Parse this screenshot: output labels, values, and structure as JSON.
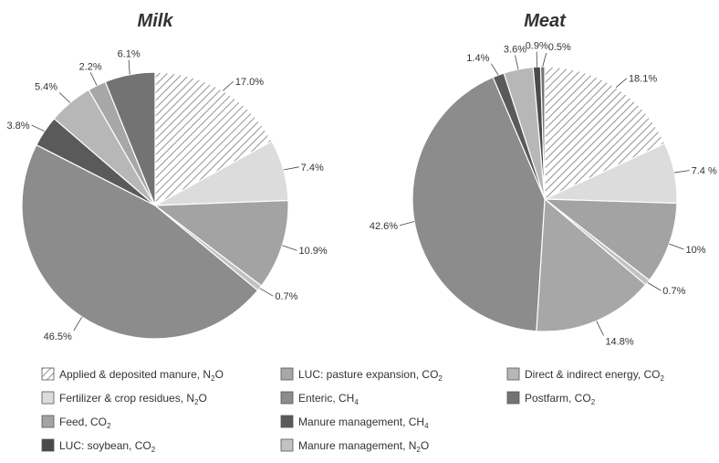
{
  "chart_data": [
    {
      "type": "pie",
      "title": "Milk",
      "slices": [
        {
          "key": "manure_n2o",
          "value": 17.0,
          "label": "17.0%"
        },
        {
          "key": "fert_n2o",
          "value": 7.4,
          "label": "7.4%"
        },
        {
          "key": "feed_co2",
          "value": 10.9,
          "label": "10.9%"
        },
        {
          "key": "mm_n2o",
          "value": 0.7,
          "label": "0.7%"
        },
        {
          "key": "enteric_ch4",
          "value": 46.5,
          "label": "46.5%"
        },
        {
          "key": "mm_ch4",
          "value": 3.8,
          "label": "3.8%"
        },
        {
          "key": "energy_co2",
          "value": 5.4,
          "label": "5.4%"
        },
        {
          "key": "luc_pasture_co2",
          "value": 2.2,
          "label": "2.2%"
        },
        {
          "key": "postfarm_co2",
          "value": 6.1,
          "label": "6.1%"
        }
      ]
    },
    {
      "type": "pie",
      "title": "Meat",
      "slices": [
        {
          "key": "manure_n2o",
          "value": 18.1,
          "label": "18.1%"
        },
        {
          "key": "fert_n2o",
          "value": 7.4,
          "label": "7.4 %"
        },
        {
          "key": "feed_co2",
          "value": 10,
          "label": "10%"
        },
        {
          "key": "mm_n2o",
          "value": 0.7,
          "label": "0.7%"
        },
        {
          "key": "luc_pasture_co2",
          "value": 14.8,
          "label": "14.8%"
        },
        {
          "key": "enteric_ch4",
          "value": 42.6,
          "label": "42.6%"
        },
        {
          "key": "mm_ch4",
          "value": 1.4,
          "label": "1.4%"
        },
        {
          "key": "energy_co2",
          "value": 3.6,
          "label": "3.6%"
        },
        {
          "key": "luc_soy_co2",
          "value": 0.9,
          "label": "0.9%"
        },
        {
          "key": "postfarm_co2",
          "value": 0.5,
          "label": "0.5%"
        }
      ]
    }
  ],
  "legend": [
    {
      "key": "manure_n2o",
      "text": "Applied & deposited manure, N",
      "sub": "2",
      "tail": "O",
      "color": "#e6e6e6"
    },
    {
      "key": "fert_n2o",
      "text": "Fertilizer & crop residues, N",
      "sub": "2",
      "tail": "O",
      "color": "#dcdcdc"
    },
    {
      "key": "feed_co2",
      "text": "Feed, CO",
      "sub": "2",
      "tail": "",
      "color": "#a3a3a3"
    },
    {
      "key": "luc_soy_co2",
      "text": "LUC: soybean, CO",
      "sub": "2",
      "tail": "",
      "color": "#4a4a4a"
    },
    {
      "key": "luc_pasture_co2",
      "text": "LUC: pasture expansion, CO",
      "sub": "2",
      "tail": "",
      "color": "#a7a7a7"
    },
    {
      "key": "enteric_ch4",
      "text": "Enteric, CH",
      "sub": "4",
      "tail": "",
      "color": "#8c8c8c"
    },
    {
      "key": "mm_ch4",
      "text": "Manure management, CH",
      "sub": "4",
      "tail": "",
      "color": "#5a5a5a"
    },
    {
      "key": "mm_n2o",
      "text": "Manure management, N",
      "sub": "2",
      "tail": "O",
      "color": "#c2c2c2"
    },
    {
      "key": "energy_co2",
      "text": "Direct & indirect energy, CO",
      "sub": "2",
      "tail": "",
      "color": "#b7b7b7"
    },
    {
      "key": "postfarm_co2",
      "text": "Postfarm, CO",
      "sub": "2",
      "tail": "",
      "color": "#737373"
    }
  ]
}
